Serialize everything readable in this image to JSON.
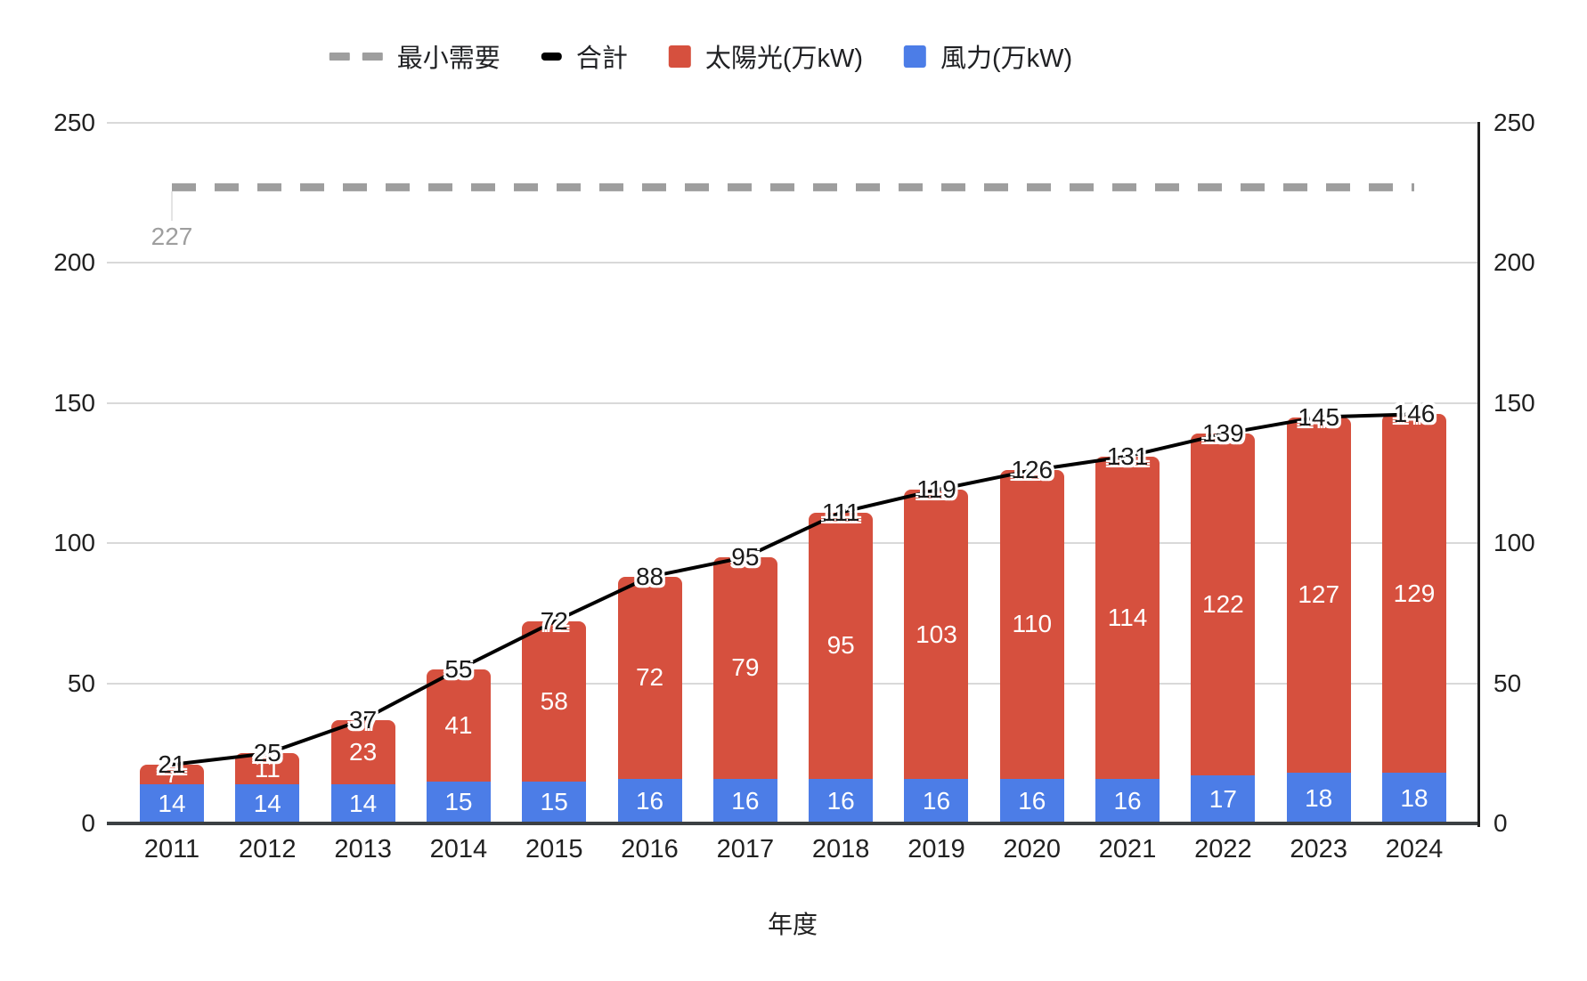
{
  "chart_data": {
    "type": "bar",
    "stacked": true,
    "xlabel": "年度",
    "ylim": [
      0,
      250
    ],
    "yticks": [
      0,
      50,
      100,
      150,
      200,
      250
    ],
    "dual_axis": true,
    "grid": true,
    "legend_position": "top",
    "categories": [
      "2011",
      "2012",
      "2013",
      "2014",
      "2015",
      "2016",
      "2017",
      "2018",
      "2019",
      "2020",
      "2021",
      "2022",
      "2023",
      "2024"
    ],
    "series": [
      {
        "name": "風力(万kW)",
        "type": "bar",
        "color": "#4C7DE7",
        "values": [
          14,
          14,
          14,
          15,
          15,
          16,
          16,
          16,
          16,
          16,
          16,
          17,
          18,
          18
        ]
      },
      {
        "name": "太陽光(万kW)",
        "type": "bar",
        "color": "#D6503E",
        "values": [
          7,
          11,
          23,
          41,
          58,
          72,
          79,
          95,
          103,
          110,
          114,
          122,
          127,
          129
        ]
      },
      {
        "name": "合計",
        "type": "line",
        "color": "#000000",
        "values": [
          21,
          25,
          37,
          55,
          72,
          88,
          95,
          111,
          119,
          126,
          131,
          139,
          145,
          146
        ]
      },
      {
        "name": "最小需要",
        "type": "dashed_line",
        "color": "#9E9E9E",
        "value": 227
      }
    ],
    "annotation": {
      "min_demand_label": "227"
    }
  },
  "theme": {
    "grid_color": "#D9D9D9",
    "axis_color": "#3C4043",
    "text_color": "#212121",
    "muted_label_color": "#9E9E9E"
  }
}
